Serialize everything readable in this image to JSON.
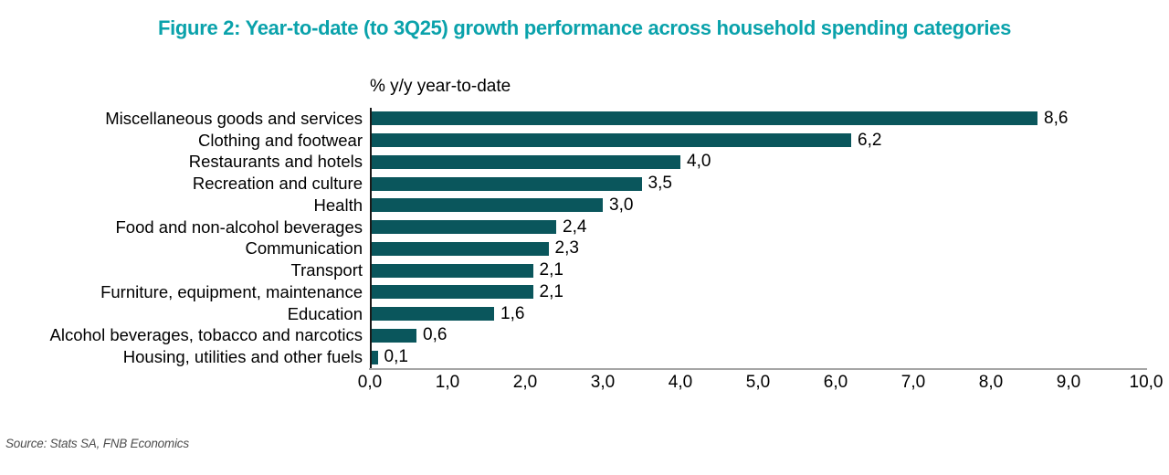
{
  "figure": {
    "title": "Figure 2: Year-to-date (to 3Q25) growth performance across household spending categories",
    "source": "Source: Stats SA, FNB Economics"
  },
  "colors": {
    "title_teal": "#0aa2ab",
    "bar_teal": "#0a565c",
    "x_axis_gray": "#a6a6a6",
    "y_axis_black": "#1a1a1a",
    "label_black": "#000000",
    "source_gray": "#4d4d4d"
  },
  "chart_data": {
    "type": "bar",
    "orientation": "horizontal",
    "title": "% y/y year-to-date",
    "categories": [
      "Miscellaneous goods and services",
      "Clothing and footwear",
      "Restaurants and hotels",
      "Recreation and culture",
      "Health",
      "Food and non-alcohol beverages",
      "Communication",
      "Transport",
      "Furniture, equipment, maintenance",
      "Education",
      "Alcohol beverages, tobacco and narcotics",
      "Housing, utilities and other fuels"
    ],
    "values": [
      8.6,
      6.2,
      4.0,
      3.5,
      3.0,
      2.4,
      2.3,
      2.1,
      2.1,
      1.6,
      0.6,
      0.1
    ],
    "value_labels": [
      "8,6",
      "6,2",
      "4,0",
      "3,5",
      "3,0",
      "2,4",
      "2,3",
      "2,1",
      "2,1",
      "1,6",
      "0,6",
      "0,1"
    ],
    "xlabel": "",
    "ylabel": "",
    "xlim": [
      0,
      10
    ],
    "x_ticks": [
      "0,0",
      "1,0",
      "2,0",
      "3,0",
      "4,0",
      "5,0",
      "6,0",
      "7,0",
      "8,0",
      "9,0",
      "10,0"
    ],
    "x_tick_values": [
      0,
      1,
      2,
      3,
      4,
      5,
      6,
      7,
      8,
      9,
      10
    ],
    "grid": false,
    "legend": false,
    "decimal_separator": ","
  }
}
